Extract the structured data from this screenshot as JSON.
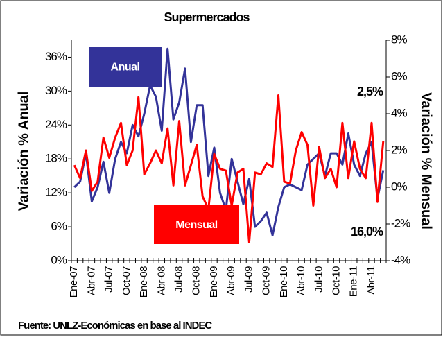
{
  "chart_data": {
    "type": "line",
    "title": "Supermercados",
    "y_label": "Variación % Anual",
    "y2_label": "Variación % Mensual",
    "source": "Fuente: UNLZ-Económicas en base al INDEC",
    "annotations": [
      "2,5%",
      "16,0%"
    ],
    "categories": [
      "Ene-07",
      null,
      null,
      "Abr-07",
      null,
      null,
      "Jul-07",
      null,
      null,
      "Oct-07",
      null,
      null,
      "Ene-08",
      null,
      null,
      "Abr-08",
      null,
      null,
      "Jul-08",
      null,
      null,
      "Oct-08",
      null,
      null,
      "Ene-09",
      null,
      null,
      "Abr-09",
      null,
      null,
      "Jul-09",
      null,
      null,
      "Oct-09",
      null,
      null,
      "Ene-10",
      null,
      null,
      "Abr-10",
      null,
      null,
      "Jul-10",
      null,
      null,
      "Oct-10",
      null,
      null,
      "Ene-11",
      null,
      null,
      "Abr-11",
      null,
      null
    ],
    "series": [
      {
        "name": "Anual",
        "color": "#333399",
        "axis": "y",
        "values": [
          13,
          14,
          19,
          10.5,
          13,
          17.5,
          12,
          18,
          21,
          19,
          24,
          22,
          26,
          31,
          29,
          23,
          37.5,
          25,
          28,
          34,
          21,
          27.5,
          27.5,
          15,
          20,
          12,
          9,
          18,
          14,
          10,
          14.5,
          6,
          7,
          8.5,
          4.5,
          9.5,
          13,
          13.5,
          13,
          12.5,
          17,
          18,
          19,
          15,
          19,
          19,
          17,
          22.5,
          17,
          15,
          19,
          21,
          11,
          16
        ]
      },
      {
        "name": "Mensual",
        "color": "#ff0000",
        "axis": "y2",
        "values": [
          1.2,
          0.5,
          2,
          -0.2,
          0.3,
          2.7,
          1.6,
          2.7,
          3.5,
          1.2,
          2,
          4.9,
          0.7,
          1.3,
          2,
          1.3,
          3.2,
          0.1,
          3.6,
          0.1,
          1.2,
          2.3,
          -0.5,
          -1.2,
          1.8,
          1,
          0.9,
          -1,
          0.8,
          1,
          -3,
          0.8,
          0.7,
          1.3,
          1.1,
          5,
          0.3,
          0.2,
          2,
          3,
          2.3,
          -1,
          2.2,
          0.5,
          1,
          0,
          3.5,
          0.5,
          2.5,
          1,
          0.5,
          3.5,
          -0.8,
          2.5
        ]
      }
    ],
    "ylim": [
      0,
      39
    ],
    "yticks": [
      {
        "value": 0,
        "label": "0%"
      },
      {
        "value": 6,
        "label": "6%"
      },
      {
        "value": 12,
        "label": "12%"
      },
      {
        "value": 18,
        "label": "18%"
      },
      {
        "value": 24,
        "label": "24%"
      },
      {
        "value": 30,
        "label": "30%"
      },
      {
        "value": 36,
        "label": "36%"
      }
    ],
    "y2lim": [
      -4,
      8
    ],
    "y2ticks": [
      {
        "value": -4,
        "label": "-4%"
      },
      {
        "value": -2,
        "label": "-2%"
      },
      {
        "value": 0,
        "label": "0%"
      },
      {
        "value": 2,
        "label": "2%"
      },
      {
        "value": 4,
        "label": "4%"
      },
      {
        "value": 6,
        "label": "6%"
      },
      {
        "value": 8,
        "label": "8%"
      }
    ]
  }
}
